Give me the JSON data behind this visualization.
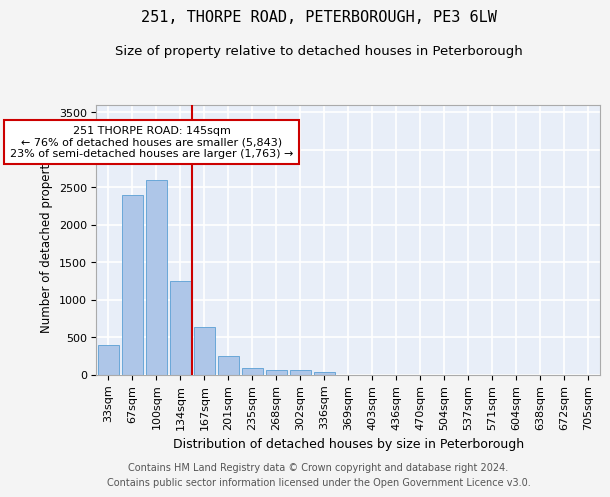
{
  "title1": "251, THORPE ROAD, PETERBOROUGH, PE3 6LW",
  "title2": "Size of property relative to detached houses in Peterborough",
  "xlabel": "Distribution of detached houses by size in Peterborough",
  "ylabel": "Number of detached properties",
  "footer1": "Contains HM Land Registry data © Crown copyright and database right 2024.",
  "footer2": "Contains public sector information licensed under the Open Government Licence v3.0.",
  "categories": [
    "33sqm",
    "67sqm",
    "100sqm",
    "134sqm",
    "167sqm",
    "201sqm",
    "235sqm",
    "268sqm",
    "302sqm",
    "336sqm",
    "369sqm",
    "403sqm",
    "436sqm",
    "470sqm",
    "504sqm",
    "537sqm",
    "571sqm",
    "604sqm",
    "638sqm",
    "672sqm",
    "705sqm"
  ],
  "values": [
    390,
    2400,
    2600,
    1250,
    640,
    250,
    90,
    60,
    55,
    40,
    0,
    0,
    0,
    0,
    0,
    0,
    0,
    0,
    0,
    0,
    0
  ],
  "bar_color": "#aec6e8",
  "bar_edge_color": "#5a9fd4",
  "annotation_text": "251 THORPE ROAD: 145sqm\n← 76% of detached houses are smaller (5,843)\n23% of semi-detached houses are larger (1,763) →",
  "vline_x": 3.5,
  "vline_color": "#cc0000",
  "annotation_box_edge": "#cc0000",
  "ylim": [
    0,
    3600
  ],
  "yticks": [
    0,
    500,
    1000,
    1500,
    2000,
    2500,
    3000,
    3500
  ],
  "background_color": "#e8eef8",
  "grid_color": "#ffffff",
  "fig_background": "#f4f4f4",
  "title1_fontsize": 11,
  "title2_fontsize": 9.5,
  "xlabel_fontsize": 9,
  "ylabel_fontsize": 8.5,
  "tick_fontsize": 8,
  "annotation_fontsize": 8,
  "footer_fontsize": 7
}
